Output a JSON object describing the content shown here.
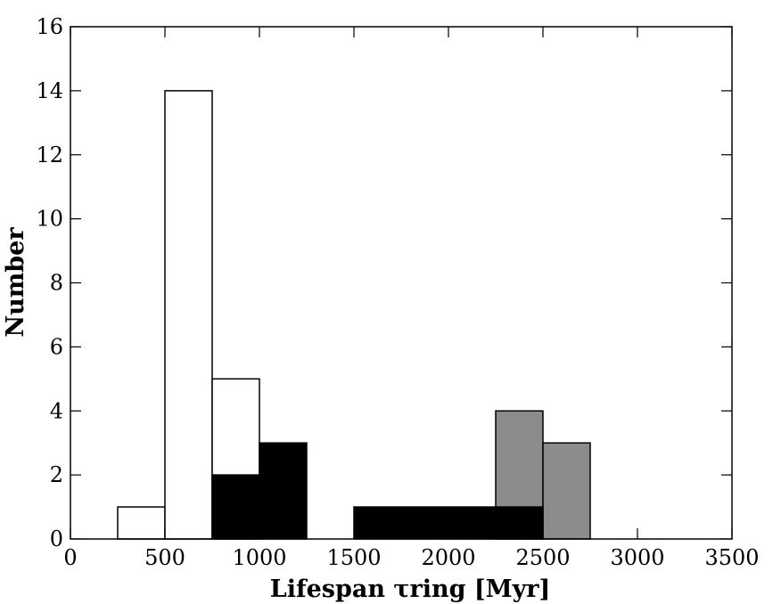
{
  "chart_data": {
    "type": "histogram",
    "xlabel": "Lifespan τring [Myr]",
    "ylabel": "Number",
    "bins": [
      0,
      250,
      500,
      750,
      1000,
      1250,
      1500,
      1750,
      2000,
      2250,
      2500,
      2750,
      3000,
      3250,
      3500
    ],
    "series": [
      {
        "color": "#ffffff",
        "values": [
          0,
          1,
          14,
          5,
          0,
          0,
          0,
          0,
          0,
          0,
          0,
          0,
          0,
          0
        ]
      },
      {
        "color": "#8c8c8c",
        "values": [
          0,
          0,
          0,
          0,
          0,
          0,
          0,
          0,
          0,
          4,
          3,
          0,
          0,
          0
        ]
      },
      {
        "color": "#000000",
        "values": [
          0,
          0,
          0,
          2,
          3,
          0,
          1,
          1,
          1,
          1,
          0,
          0,
          0,
          0
        ]
      }
    ],
    "xlim": [
      0,
      3500
    ],
    "xticks": [
      0,
      500,
      1000,
      1500,
      2000,
      2500,
      3000,
      3500
    ],
    "ylim": [
      0,
      16
    ],
    "yticks": [
      0,
      2,
      4,
      6,
      8,
      10,
      12,
      14,
      16
    ]
  }
}
